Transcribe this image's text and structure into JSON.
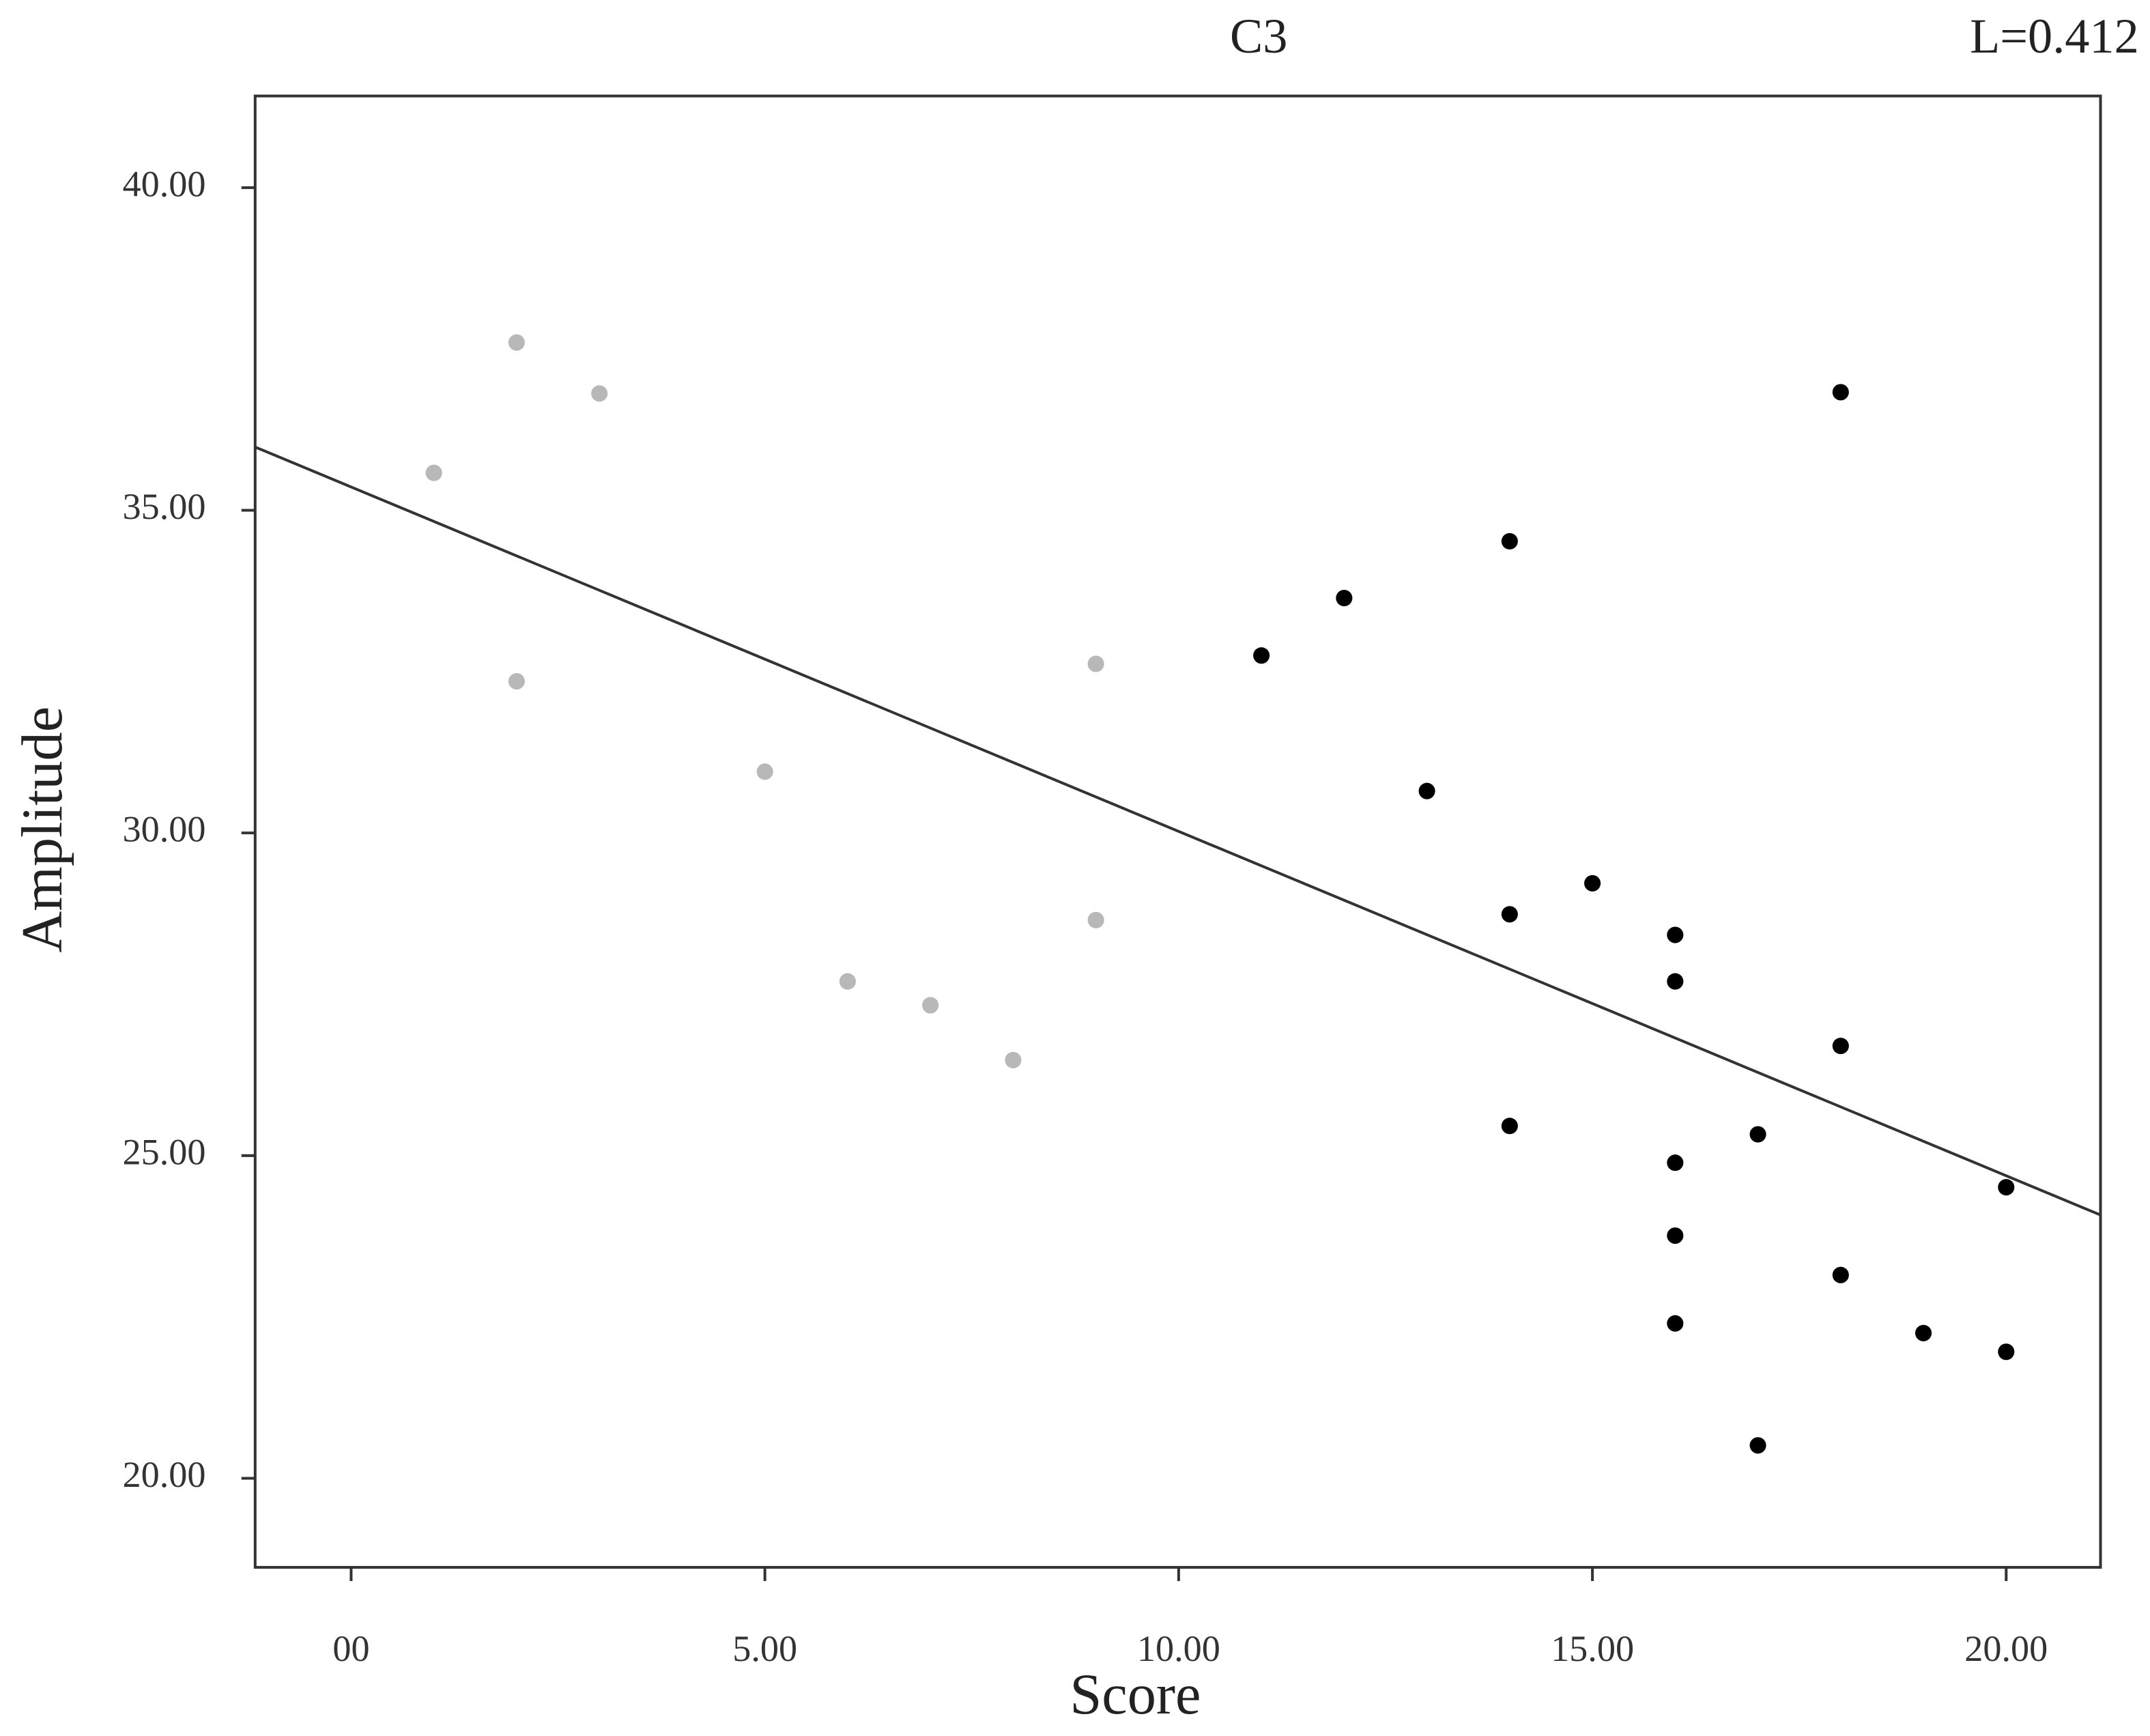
{
  "chart_data": {
    "type": "scatter",
    "title": "C3",
    "annotation": "L=0.412",
    "x_label": "Score",
    "y_label": "Amplitude",
    "xlim": [
      -1.16,
      21.14
    ],
    "ylim": [
      18.62,
      41.42
    ],
    "xticks": [
      {
        "value": 0,
        "label": "00"
      },
      {
        "value": 5,
        "label": "5.00"
      },
      {
        "value": 10,
        "label": "10.00"
      },
      {
        "value": 15,
        "label": "15.00"
      },
      {
        "value": 20,
        "label": "20.00"
      }
    ],
    "yticks": [
      {
        "value": 20,
        "label": "20.00"
      },
      {
        "value": 25,
        "label": "25.00"
      },
      {
        "value": 30,
        "label": "30.00"
      },
      {
        "value": 35,
        "label": "35.00"
      },
      {
        "value": 40,
        "label": "40.00"
      }
    ],
    "series": [
      {
        "color": "#b8b8b8",
        "x": [
          1,
          2,
          3,
          2,
          5,
          6,
          7,
          8,
          9,
          9
        ],
        "values": [
          35.58,
          37.6,
          36.81,
          32.35,
          30.95,
          27.7,
          27.33,
          26.48,
          32.62,
          28.65
        ]
      },
      {
        "color": "#000000",
        "x": [
          11,
          12,
          14,
          13,
          14,
          15,
          16,
          16,
          18,
          18,
          14,
          17,
          16,
          20,
          16,
          18,
          16,
          19,
          20,
          17
        ],
        "values": [
          32.75,
          33.64,
          34.52,
          30.65,
          28.74,
          29.22,
          28.42,
          27.7,
          36.83,
          26.7,
          25.46,
          25.33,
          24.89,
          24.51,
          23.76,
          23.15,
          22.4,
          22.25,
          21.96,
          20.51
        ]
      }
    ],
    "trend_line": {
      "color": "#333333",
      "x": [
        -1.16,
        21.14
      ],
      "values": [
        35.98,
        24.08
      ]
    }
  }
}
